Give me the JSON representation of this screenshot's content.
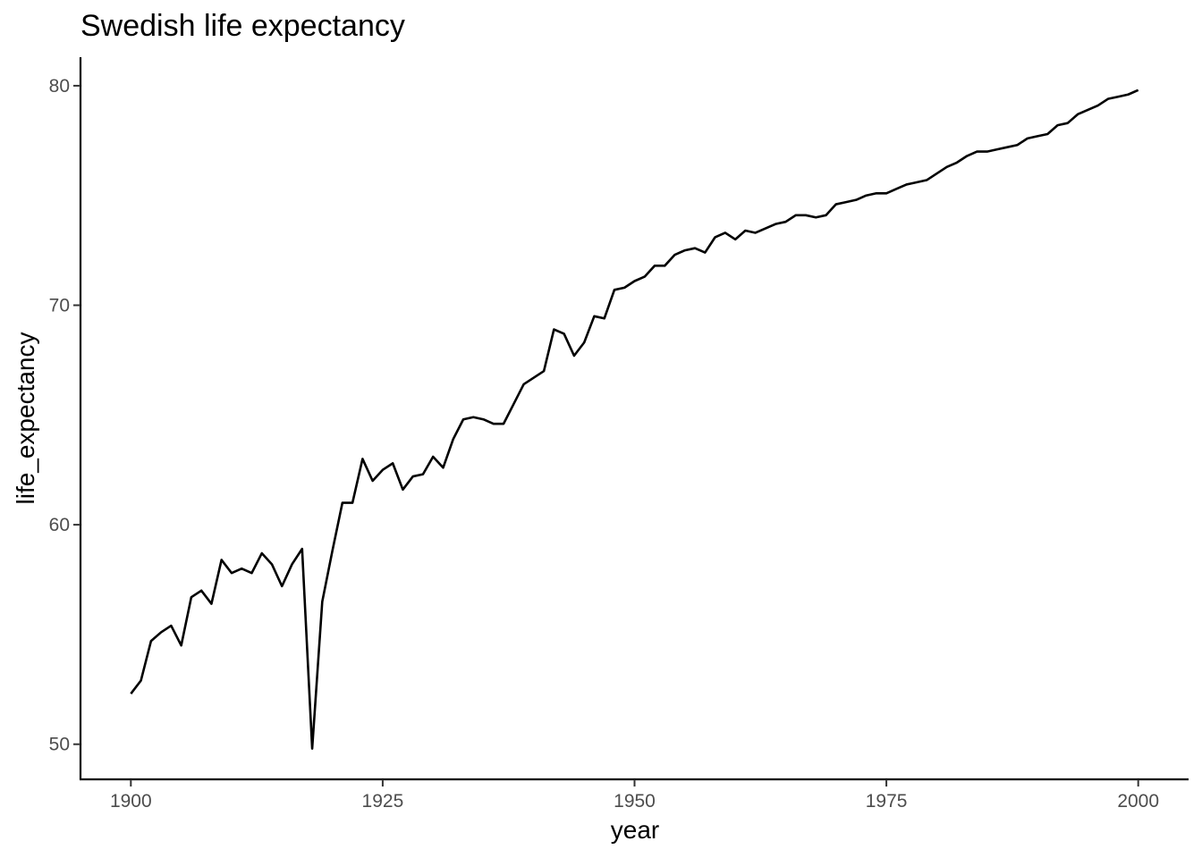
{
  "chart_data": {
    "type": "line",
    "title": "Swedish life expectancy",
    "xlabel": "year",
    "ylabel": "life_expectancy",
    "xlim": [
      1895,
      2005
    ],
    "ylim": [
      48.4,
      81.3
    ],
    "x_ticks": [
      1900,
      1925,
      1950,
      1975,
      2000
    ],
    "x_tick_labels": [
      "1900",
      "1925",
      "1950",
      "1975",
      "2000"
    ],
    "y_ticks": [
      50,
      60,
      70,
      80
    ],
    "y_tick_labels": [
      "50",
      "60",
      "70",
      "80"
    ],
    "grid": false,
    "legend": "none",
    "series": [
      {
        "name": "life_expectancy",
        "x": [
          1900,
          1901,
          1902,
          1903,
          1904,
          1905,
          1906,
          1907,
          1908,
          1909,
          1910,
          1911,
          1912,
          1913,
          1914,
          1915,
          1916,
          1917,
          1918,
          1919,
          1920,
          1921,
          1922,
          1923,
          1924,
          1925,
          1926,
          1927,
          1928,
          1929,
          1930,
          1931,
          1932,
          1933,
          1934,
          1935,
          1936,
          1937,
          1938,
          1939,
          1940,
          1941,
          1942,
          1943,
          1944,
          1945,
          1946,
          1947,
          1948,
          1949,
          1950,
          1951,
          1952,
          1953,
          1954,
          1955,
          1956,
          1957,
          1958,
          1959,
          1960,
          1961,
          1962,
          1963,
          1964,
          1965,
          1966,
          1967,
          1968,
          1969,
          1970,
          1971,
          1972,
          1973,
          1974,
          1975,
          1976,
          1977,
          1978,
          1979,
          1980,
          1981,
          1982,
          1983,
          1984,
          1985,
          1986,
          1987,
          1988,
          1989,
          1990,
          1991,
          1992,
          1993,
          1994,
          1995,
          1996,
          1997,
          1998,
          1999,
          2000
        ],
        "values": [
          52.3,
          52.9,
          54.7,
          55.1,
          55.4,
          54.5,
          56.7,
          57.0,
          56.4,
          58.4,
          57.8,
          58.0,
          57.8,
          58.7,
          58.2,
          57.2,
          58.2,
          58.9,
          49.8,
          56.5,
          58.8,
          61.0,
          61.0,
          63.0,
          62.0,
          62.5,
          62.8,
          61.6,
          62.2,
          62.3,
          63.1,
          62.6,
          63.9,
          64.8,
          64.9,
          64.8,
          64.6,
          64.6,
          65.5,
          66.4,
          66.7,
          67.0,
          68.9,
          68.7,
          67.7,
          68.3,
          69.5,
          69.4,
          70.7,
          70.8,
          71.1,
          71.3,
          71.8,
          71.8,
          72.3,
          72.5,
          72.6,
          72.4,
          73.1,
          73.3,
          73.0,
          73.4,
          73.3,
          73.5,
          73.7,
          73.8,
          74.1,
          74.1,
          74.0,
          74.1,
          74.6,
          74.7,
          74.8,
          75.0,
          75.1,
          75.1,
          75.3,
          75.5,
          75.6,
          75.7,
          76.0,
          76.3,
          76.5,
          76.8,
          77.0,
          77.0,
          77.1,
          77.2,
          77.3,
          77.6,
          77.7,
          77.8,
          78.2,
          78.3,
          78.7,
          78.9,
          79.1,
          79.4,
          79.5,
          79.6,
          79.8
        ]
      }
    ]
  }
}
